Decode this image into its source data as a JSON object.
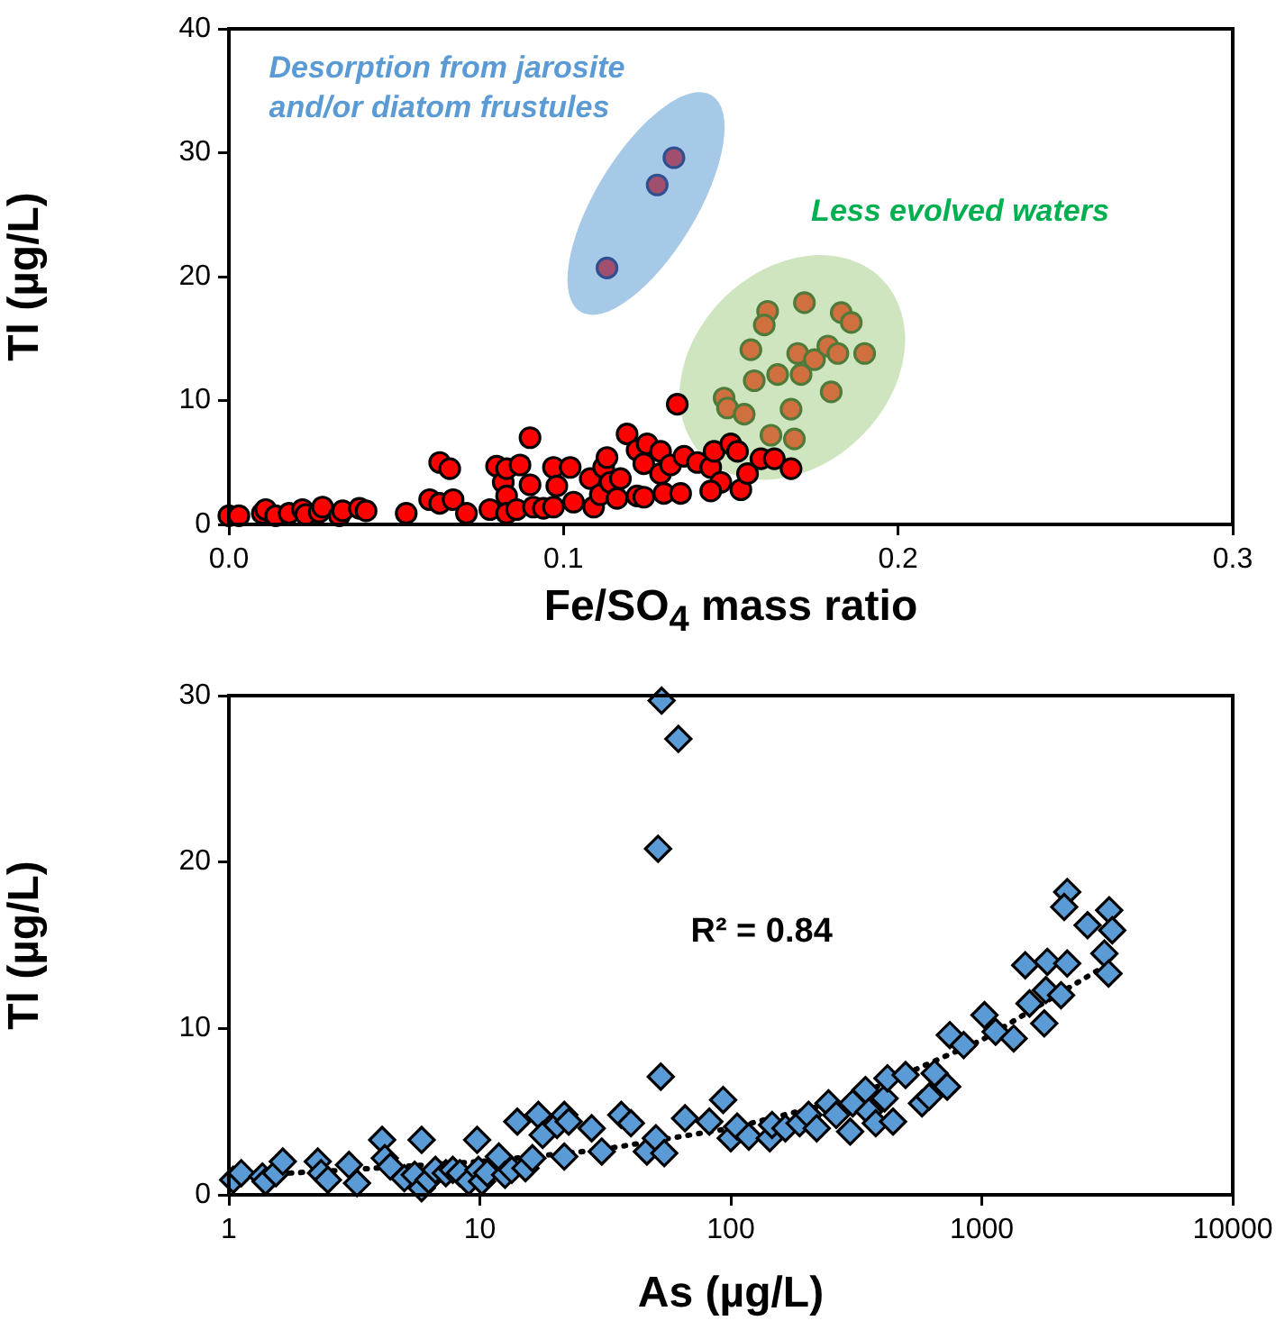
{
  "chart_data": [
    {
      "type": "scatter",
      "xlabel": "Fe/SO$_{4}$ mass ratio",
      "ylabel": "Tl (µg/L)",
      "xlim": [
        0,
        0.3
      ],
      "xticks": [
        {
          "value": 0,
          "label": "0.0"
        },
        0.1,
        0.2,
        0.3
      ],
      "ylim": [
        0,
        40
      ],
      "yticks": [
        0,
        10,
        20,
        30,
        40
      ],
      "marker": "circle",
      "annotations": [
        "Desorption from jarosite and/or diatom frustules",
        "Less evolved waters"
      ],
      "series": [
        {
          "color": "#ff0000",
          "x": [
            0.0,
            0.003,
            0.01,
            0.011,
            0.014,
            0.018,
            0.022,
            0.023,
            0.027,
            0.028,
            0.033,
            0.034,
            0.039,
            0.041,
            0.053,
            0.06,
            0.063,
            0.063,
            0.066,
            0.067,
            0.071,
            0.078,
            0.08,
            0.082,
            0.083,
            0.083,
            0.083,
            0.086,
            0.087,
            0.09,
            0.09,
            0.091,
            0.094,
            0.097,
            0.097,
            0.098,
            0.102,
            0.103,
            0.108,
            0.109,
            0.111,
            0.112,
            0.113,
            0.114,
            0.116,
            0.117,
            0.119,
            0.122,
            0.122,
            0.124,
            0.124,
            0.125,
            0.129,
            0.129,
            0.13,
            0.132,
            0.134,
            0.135,
            0.136,
            0.14,
            0.144,
            0.145,
            0.147,
            0.144,
            0.15,
            0.152,
            0.153,
            0.155,
            0.159,
            0.163,
            0.168
          ],
          "values": [
            0.7,
            0.7,
            0.9,
            1.2,
            0.7,
            0.9,
            1.2,
            0.8,
            1.0,
            1.4,
            0.7,
            1.1,
            1.3,
            1.1,
            0.9,
            2.0,
            1.7,
            5.0,
            4.5,
            2.0,
            0.9,
            1.2,
            4.7,
            3.4,
            4.5,
            2.3,
            0.9,
            1.2,
            4.8,
            3.2,
            7.0,
            1.4,
            1.3,
            4.6,
            1.4,
            3.1,
            4.6,
            1.8,
            3.7,
            1.4,
            2.4,
            4.6,
            5.4,
            3.4,
            2.1,
            3.7,
            7.3,
            6.0,
            2.3,
            4.9,
            2.2,
            6.5,
            5.9,
            4.1,
            2.5,
            4.8,
            9.7,
            2.5,
            5.5,
            5.0,
            4.6,
            5.9,
            3.4,
            2.7,
            6.5,
            5.9,
            2.8,
            4.1,
            5.3,
            5.3,
            4.5
          ]
        },
        {
          "color": "#a0506e",
          "x": [
            0.113,
            0.128,
            0.133
          ],
          "values": [
            20.7,
            27.4,
            29.6
          ]
        },
        {
          "color": "#d0703f",
          "x": [
            0.161,
            0.172,
            0.16,
            0.183,
            0.186,
            0.156,
            0.17,
            0.175,
            0.179,
            0.182,
            0.19,
            0.157,
            0.164,
            0.171,
            0.18,
            0.148,
            0.149,
            0.154,
            0.168,
            0.162,
            0.169
          ],
          "values": [
            17.2,
            17.9,
            16.1,
            17.1,
            16.3,
            14.1,
            13.8,
            13.3,
            14.4,
            13.8,
            13.8,
            11.6,
            12.1,
            12.1,
            10.7,
            10.2,
            9.4,
            8.9,
            9.3,
            7.2,
            6.9
          ]
        }
      ]
    },
    {
      "type": "scatter",
      "xlabel": "As (µg/L)",
      "ylabel": "Tl (µg/L)",
      "log": "x",
      "xlim": [
        1,
        10000
      ],
      "xticks": [
        1,
        10,
        100,
        1000,
        10000
      ],
      "ylim": [
        0,
        30
      ],
      "yticks": [
        0,
        10,
        20,
        30
      ],
      "marker": "diamond",
      "annotations": [
        "R² = 0.84"
      ],
      "series": [
        {
          "color": "#5b9bd5",
          "x": [
            1.04,
            1.12,
            1.36,
            1.4,
            1.54,
            1.64,
            2.26,
            2.33,
            2.48,
            3.01,
            3.24,
            4.08,
            4.18,
            4.4,
            5.0,
            5.5,
            5.86,
            5.86,
            6.25,
            6.65,
            7.32,
            7.8,
            8.32,
            9.03,
            9.75,
            9.87,
            10.2,
            10.7,
            11.9,
            12.6,
            13.4,
            14.1,
            15.2,
            16.2,
            17.1,
            17.8,
            20.3,
            21.7,
            21.7,
            22.6,
            27.9,
            30.6,
            36.6,
            40.0,
            46.3,
            50.3,
            52.6,
            54.3,
            65.7,
            82.1,
            93.2,
            100,
            106,
            118,
            143,
            146,
            165,
            188,
            204,
            220,
            245,
            263,
            299,
            306,
            344,
            355,
            378,
            410,
            421,
            443,
            497,
            578,
            617,
            649,
            728,
            746,
            847,
            1025,
            1135,
            1340,
            1774,
            53,
            61.8,
            51.3,
            2190,
            2130,
            2640,
            3220,
            3310,
            3080,
            3200,
            1490,
            1825,
            2190,
            1800,
            2070,
            1550
          ],
          "values": [
            0.9,
            1.3,
            1.1,
            0.8,
            1.3,
            2.0,
            2.0,
            1.3,
            0.9,
            1.8,
            0.7,
            3.3,
            2.2,
            1.7,
            1.0,
            1.2,
            3.3,
            0.4,
            0.9,
            1.5,
            1.3,
            1.5,
            1.3,
            0.8,
            3.3,
            1.5,
            0.8,
            1.3,
            2.3,
            1.2,
            1.5,
            4.4,
            1.6,
            2.2,
            4.8,
            3.6,
            4.2,
            4.8,
            2.3,
            4.4,
            4.0,
            2.6,
            4.8,
            4.3,
            2.6,
            3.4,
            7.1,
            2.5,
            4.6,
            4.4,
            5.7,
            3.4,
            4.1,
            3.5,
            3.4,
            4.2,
            4.0,
            4.3,
            4.8,
            4.0,
            5.5,
            4.8,
            3.8,
            5.5,
            6.3,
            5.0,
            4.3,
            5.8,
            7.0,
            4.4,
            7.2,
            5.5,
            5.9,
            7.3,
            6.5,
            9.6,
            9.0,
            10.8,
            9.8,
            9.4,
            10.3,
            29.7,
            27.4,
            20.8,
            18.2,
            17.3,
            16.2,
            17.1,
            15.9,
            14.5,
            13.3,
            13.8,
            14.0,
            13.9,
            12.3,
            12.0,
            11.5
          ]
        },
        {
          "type": "line",
          "color": "#000000",
          "line_style": "dotted",
          "marker": "none",
          "x": [
            1.3,
            3,
            10,
            30,
            100,
            300,
            1000,
            3300
          ],
          "values": [
            1.2,
            1.5,
            2.0,
            2.7,
            4.0,
            5.8,
            9.3,
            14.0
          ]
        }
      ]
    }
  ]
}
